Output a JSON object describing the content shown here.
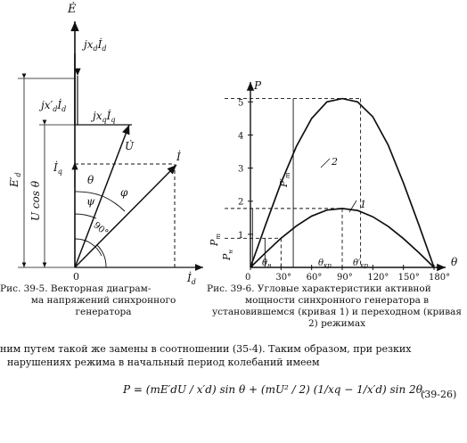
{
  "left_figure": {
    "labels": {
      "E_dot": "Ė",
      "jxd_Id": "jx",
      "jxd_sub": "d",
      "jxd_I": "İ",
      "jxd_Isub": "d",
      "jxpd_Id": "jx′",
      "jxpd_sub": "d",
      "jxpd_I": "İ",
      "jxpd_Isub": "d",
      "jxq_Iq": "jx",
      "jxq_sub": "q",
      "jxq_I": "İ",
      "jxq_Isub": "q",
      "U_dot": "U̇",
      "I_dot": "İ",
      "Iq": "İ",
      "Iq_sub": "q",
      "theta": "θ",
      "phi": "φ",
      "psi": "ψ",
      "ninety": "90°",
      "Epd": "E′",
      "Epd_sub": "d",
      "Ucos": "U cos θ",
      "origin": "0",
      "Id": "İ",
      "Id_sub": "d"
    },
    "caption_line1": "Рис. 39-5. Векторная диаграм-",
    "caption_rest": "ма напряжений синхронного генератора"
  },
  "right_figure": {
    "axis_y_label": "P",
    "axis_x_label": "θ",
    "y_ticks": [
      "1",
      "2",
      "3",
      "4",
      "5"
    ],
    "x_ticks": [
      "0",
      "30°",
      "60°",
      "90°",
      "120°",
      "150°",
      "180°"
    ],
    "curve_labels": [
      "1",
      "2"
    ],
    "marker_labels": {
      "Pm": "P",
      "Pm_sub": "m",
      "Pn": "P",
      "Pn_sub": "н",
      "Ppm": "P′",
      "Ppm_sub": "m",
      "theta_n": "θ",
      "theta_n_sub": "н",
      "theta_kr": "θ",
      "theta_kr_sub": "кр",
      "theta_pkr": "θ′",
      "theta_pkr_sub": "кр"
    },
    "caption_line1": "Рис. 39-6. Угловые характеристики активной",
    "caption_rest": "мощности синхронного генератора в установившемся (кривая 1) и переходном (кривая 2) режимах"
  },
  "paragraph": {
    "line1": "ним путем такой же замены в соотношении (35-4). Таким образом, при резких",
    "line2": "нарушениях режима в начальный период колебаний имеем"
  },
  "formula": {
    "text": "P = (mE′dU / x′d) sin θ + (mU² / 2) (1/xq − 1/x′d) sin 2θ.",
    "number": "(39-26)"
  },
  "chart_data": [
    {
      "type": "line",
      "title": "",
      "xlabel": "θ",
      "ylabel": "P",
      "x_ticks": [
        "0",
        "30°",
        "60°",
        "90°",
        "120°",
        "150°",
        "180°"
      ],
      "y_ticks": [
        "1",
        "2",
        "3",
        "4",
        "5"
      ],
      "xlim": [
        0,
        180
      ],
      "ylim": [
        0,
        5.6
      ],
      "grid": false,
      "series": [
        {
          "name": "1",
          "x": [
            0,
            15,
            30,
            45,
            60,
            75,
            90,
            105,
            120,
            135,
            150,
            165,
            180
          ],
          "y": [
            0,
            0.45,
            0.88,
            1.25,
            1.55,
            1.73,
            1.78,
            1.72,
            1.53,
            1.24,
            0.87,
            0.45,
            0
          ]
        },
        {
          "name": "2",
          "x": [
            0,
            15,
            30,
            45,
            60,
            75,
            90,
            105,
            120,
            135,
            150,
            165,
            180
          ],
          "y": [
            0,
            1.3,
            2.55,
            3.65,
            4.5,
            5.0,
            5.1,
            5.0,
            4.55,
            3.7,
            2.55,
            1.3,
            0
          ]
        }
      ]
    }
  ]
}
